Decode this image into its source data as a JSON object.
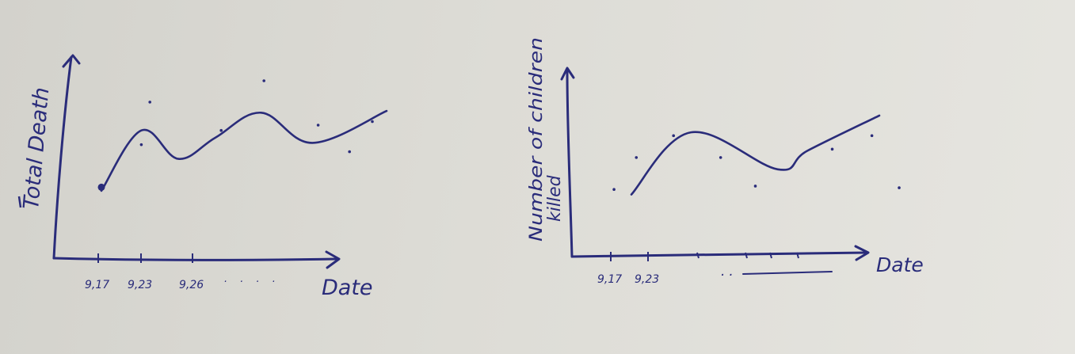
{
  "colors": {
    "ink": "#2a2c7a",
    "paper": "#dddcd6"
  },
  "chart_data": [
    {
      "type": "line",
      "ylabel": "Total Death",
      "xlabel": "Date",
      "x_ticks": [
        "9,17",
        "9,23",
        "9,26"
      ],
      "x_trailing": ". . . .",
      "curve": [
        {
          "x": 0.0,
          "y": 0.38
        },
        {
          "x": 0.14,
          "y": 0.72
        },
        {
          "x": 0.27,
          "y": 0.56
        },
        {
          "x": 0.4,
          "y": 0.68
        },
        {
          "x": 0.56,
          "y": 0.82
        },
        {
          "x": 0.74,
          "y": 0.65
        },
        {
          "x": 1.0,
          "y": 0.83
        }
      ],
      "points": [
        {
          "x": 0.0,
          "y": 0.4
        },
        {
          "x": 0.14,
          "y": 0.64
        },
        {
          "x": 0.17,
          "y": 0.88
        },
        {
          "x": 0.42,
          "y": 0.72
        },
        {
          "x": 0.57,
          "y": 1.0
        },
        {
          "x": 0.76,
          "y": 0.75
        },
        {
          "x": 0.87,
          "y": 0.6
        },
        {
          "x": 0.95,
          "y": 0.77
        }
      ],
      "grid": false
    },
    {
      "type": "line",
      "ylabel": "Number of children killed",
      "xlabel": "Date",
      "x_ticks": [
        "9,17",
        "9,23"
      ],
      "curve": [
        {
          "x": 0.0,
          "y": 0.37
        },
        {
          "x": 0.24,
          "y": 0.74
        },
        {
          "x": 0.59,
          "y": 0.52
        },
        {
          "x": 0.71,
          "y": 0.63
        },
        {
          "x": 1.0,
          "y": 0.84
        }
      ],
      "points": [
        {
          "x": -0.07,
          "y": 0.4
        },
        {
          "x": 0.02,
          "y": 0.59
        },
        {
          "x": 0.17,
          "y": 0.72
        },
        {
          "x": 0.36,
          "y": 0.59
        },
        {
          "x": 0.5,
          "y": 0.42
        },
        {
          "x": 0.81,
          "y": 0.64
        },
        {
          "x": 0.97,
          "y": 0.72
        },
        {
          "x": 1.08,
          "y": 0.41
        }
      ],
      "grid": false
    }
  ]
}
